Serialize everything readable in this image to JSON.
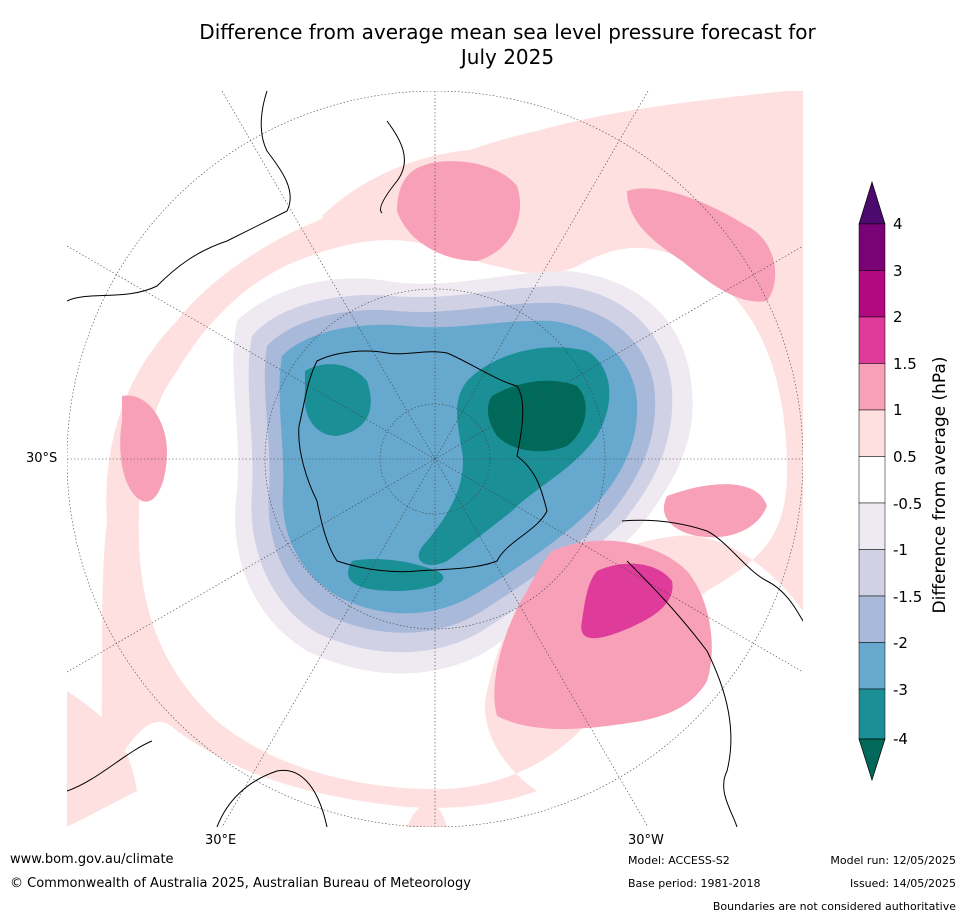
{
  "title_line1": "Difference from average mean sea level pressure forecast for",
  "title_line2": "July 2025",
  "labels": {
    "lat": "30°S",
    "lon_east": "30°E",
    "lon_west": "30°W"
  },
  "colorbar": {
    "title": "Difference from average (hPa)",
    "ticks": [
      "4",
      "3",
      "2",
      "1.5",
      "1",
      "0.5",
      "-0.5",
      "-1",
      "-1.5",
      "-2",
      "-3",
      "-4"
    ],
    "colors": {
      "gt4": "#4d0a6e",
      "3_4": "#7a0277",
      "2_3": "#b10a80",
      "1.5_2": "#de3b9a",
      "1_1.5": "#f8a0b8",
      "0.5_1": "#fde0df",
      "neutral": "#ffffff",
      "-1_-0.5": "#efeaf2",
      "-1.5_-1": "#d1d1e6",
      "-2_-1.5": "#a8b9d9",
      "-3_-2": "#67a8cf",
      "-4_-3": "#1b8f96",
      "lt-4": "#00695a"
    }
  },
  "footer": {
    "website": "www.bom.gov.au/climate",
    "copyright": "© Commonwealth of Australia 2025, Australian Bureau of Meteorology",
    "model": "Model: ACCESS-S2",
    "base_period": "Base period: 1981-2018",
    "model_run": "Model run: 12/05/2025",
    "issued": "Issued: 14/05/2025",
    "disclaimer": "Boundaries are not considered authoritative"
  }
}
